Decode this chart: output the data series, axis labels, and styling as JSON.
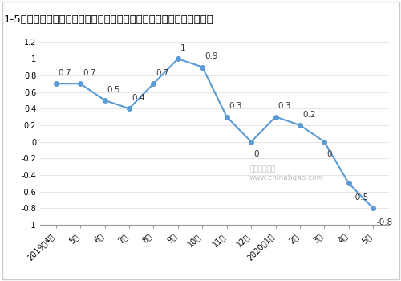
{
  "title": "1-5月泵、阀门、压缩机及类似机械制造工业生产者出厂价格指数同比涨",
  "x_labels": [
    "2019年4月",
    "5月",
    "6月",
    "7月",
    "8月",
    "9月",
    "10月",
    "11月",
    "12月",
    "2020年1月",
    "2月",
    "3月",
    "4月",
    "5月"
  ],
  "y_values": [
    0.7,
    0.7,
    0.5,
    0.4,
    0.7,
    1.0,
    0.9,
    0.3,
    0.0,
    0.3,
    0.2,
    0.0,
    -0.5,
    -0.8
  ],
  "y_labels": [
    "0.7",
    "0.7",
    "0.5",
    "0.4",
    "0.7",
    "1",
    "0.9",
    "0.3",
    "0",
    "0.3",
    "0.2",
    "0",
    "-0.5",
    "-0.8"
  ],
  "ylim": [
    -1.0,
    1.2
  ],
  "yticks": [
    -1.0,
    -0.8,
    -0.6,
    -0.4,
    -0.2,
    0.0,
    0.2,
    0.4,
    0.6,
    0.8,
    1.0,
    1.2
  ],
  "line_color": "#5b9bd5",
  "marker_color": "#5b9bd5",
  "bg_color": "#ffffff",
  "plot_bg": "#ffffff",
  "border_color": "#cccccc",
  "title_color": "#000000",
  "title_fontsize": 9.5,
  "label_fontsize": 7.5,
  "tick_fontsize": 7,
  "watermark_text": "中国报告大厅\nwww.chinabgao.com"
}
